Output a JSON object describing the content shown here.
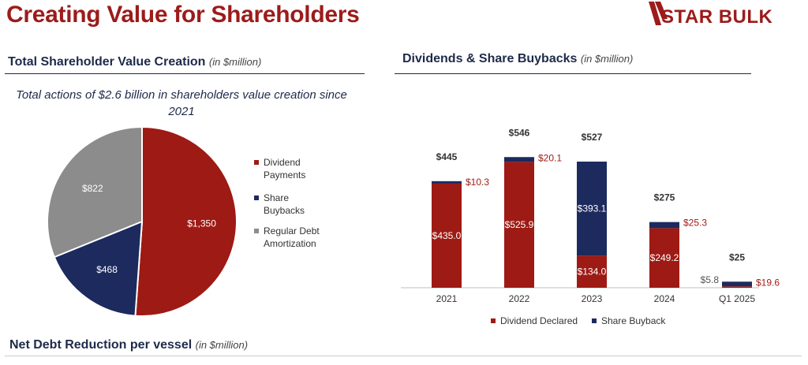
{
  "page": {
    "title": "Creating Value for Shareholders",
    "logo_text": "STAR BULK"
  },
  "colors": {
    "brand_red": "#9c1b1b",
    "navy": "#1e2a4a",
    "dividend": "#9e1a14",
    "buyback": "#1c2a5e",
    "debt": "#8c8c8c"
  },
  "left_section": {
    "title": "Total Shareholder Value Creation",
    "unit": "(in $million)",
    "subtitle": "Total actions of $2.6 billion in shareholders value creation since 2021"
  },
  "right_section": {
    "title": "Dividends & Share Buybacks",
    "unit": "(in $million)"
  },
  "bottom_section": {
    "title": "Net Debt Reduction per vessel",
    "unit": "(in $million)"
  },
  "chart_data": [
    {
      "type": "pie",
      "labels": [
        "Dividend Payments",
        "Share Buybacks",
        "Regular Debt Amortization"
      ],
      "values": [
        1350,
        468,
        822
      ],
      "value_labels": [
        "$1,350",
        "$468",
        "$822"
      ],
      "colors": [
        "#9e1a14",
        "#1c2a5e",
        "#8c8c8c"
      ],
      "legend": "right",
      "legend_labels": [
        "Dividend Payments",
        "Share Buybacks",
        "Regular Debt Amortization"
      ]
    },
    {
      "type": "bar",
      "stacked": true,
      "categories": [
        "2021",
        "2022",
        "2023",
        "2024",
        "Q1 2025"
      ],
      "series": [
        {
          "name": "Dividend Declared",
          "values": [
            435.0,
            525.9,
            134.0,
            249.2,
            5.8
          ],
          "labels": [
            "$435.0",
            "$525.9",
            "$134.0",
            "$249.2",
            "$5.8"
          ],
          "color": "#9e1a14"
        },
        {
          "name": "Share Buyback",
          "values": [
            10.3,
            20.1,
            393.1,
            25.3,
            19.6
          ],
          "labels": [
            "$10.3",
            "$20.1",
            "$393.1",
            "$25.3",
            "$19.6"
          ],
          "color": "#1c2a5e"
        }
      ],
      "totals": [
        "$445",
        "$546",
        "$527",
        "$275",
        "$25"
      ],
      "ylim": [
        0,
        560
      ],
      "legend": "bottom",
      "grid": false
    }
  ]
}
